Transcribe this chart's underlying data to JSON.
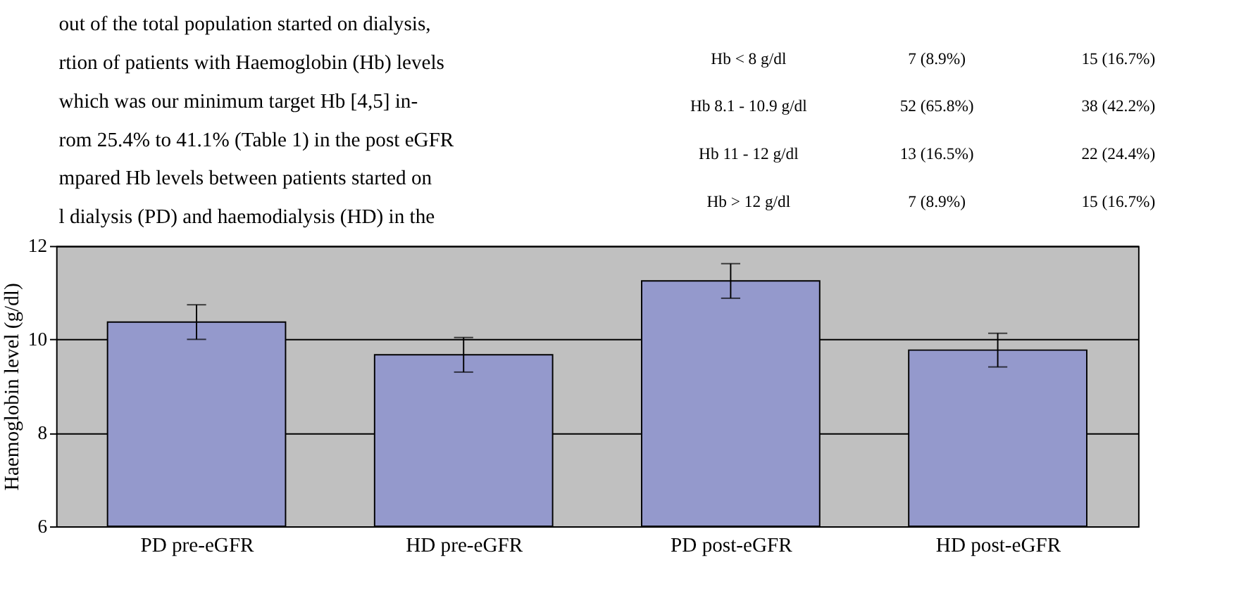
{
  "chart_data": [
    {
      "type": "other",
      "annotations": [
        "out of the total population started on dialysis,",
        "rtion of patients with Haemoglobin (Hb) levels",
        "which was our minimum target Hb [4,5] in-",
        "rom 25.4% to 41.1% (Table 1) in the post eGFR",
        "mpared Hb levels between patients started on",
        "l dialysis (PD) and haemodialysis (HD) in the",
        "Hb < 8 g/dl",
        "7 (8.9%)",
        "15 (16.7%)",
        "Hb 8.1 - 10.9 g/dl",
        "52 (65.8%)",
        "38 (42.2%)",
        "Hb 11 - 12 g/dl",
        "13 (16.5%)",
        "22 (24.4%)",
        "Hb > 12 g/dl",
        "7 (8.9%)",
        "15 (16.7%)"
      ]
    },
    {
      "type": "bar",
      "ylabel": "Haemoglobin level (g/dl)",
      "categories": [
        "PD pre-eGFR",
        "HD pre-eGFR",
        "PD post-eGFR",
        "HD post-eGFR"
      ],
      "values": [
        10.37,
        9.67,
        11.25,
        9.77
      ],
      "errors": [
        0.37,
        0.37,
        0.37,
        0.36
      ],
      "color": "#9499cc",
      "ylim": [
        6,
        12
      ],
      "yticks": [
        6,
        8,
        10,
        12
      ],
      "grid": "y"
    }
  ]
}
